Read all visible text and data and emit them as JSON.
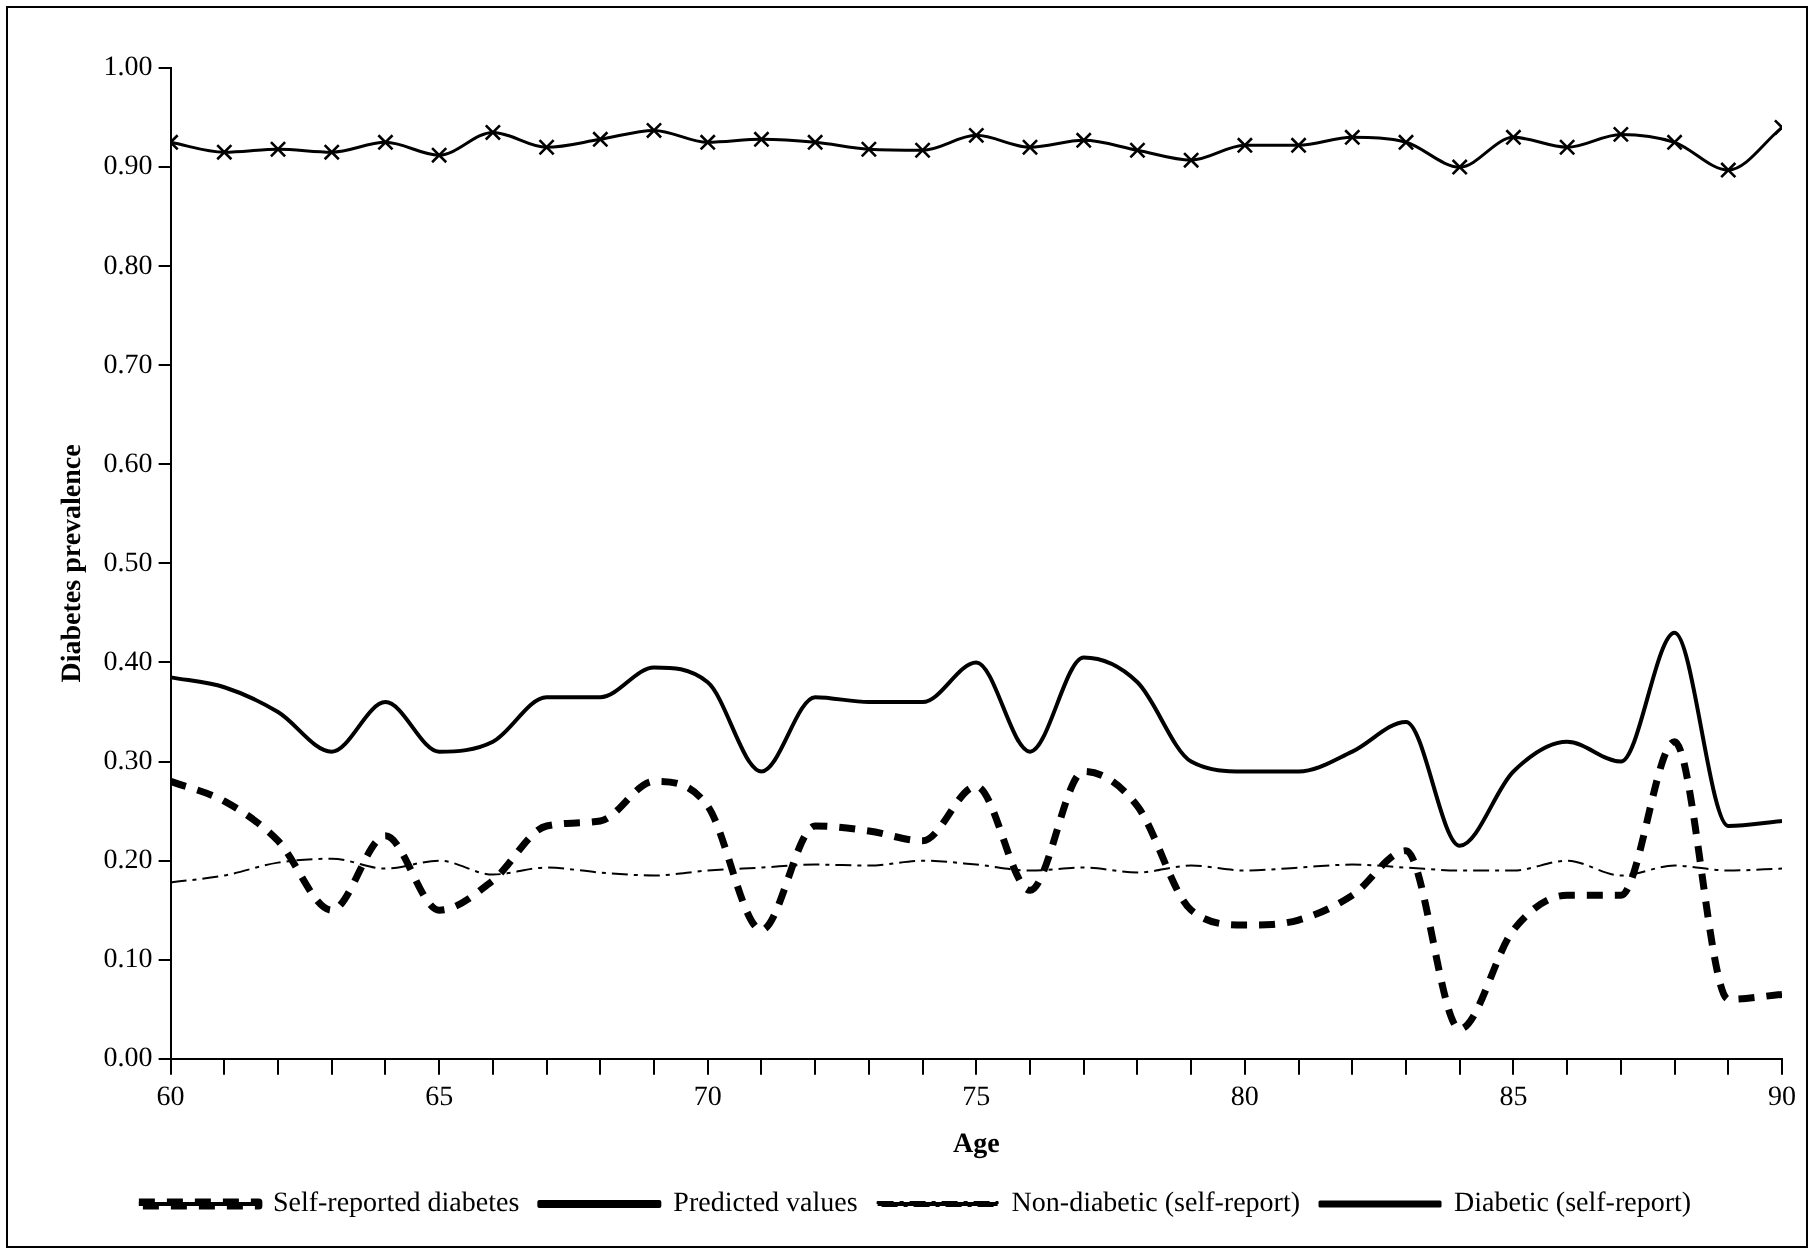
{
  "chart_data": {
    "type": "line",
    "xlabel": "Age",
    "ylabel": "Diabetes prevalence",
    "x": [
      60,
      61,
      62,
      63,
      64,
      65,
      66,
      67,
      68,
      69,
      70,
      71,
      72,
      73,
      74,
      75,
      76,
      77,
      78,
      79,
      80,
      81,
      82,
      83,
      84,
      85,
      86,
      87,
      88,
      89,
      90
    ],
    "series": [
      {
        "name": "Self-reported diabetes",
        "color": "#000000",
        "line_style": "dashed",
        "marker": "none",
        "values": [
          0.28,
          0.26,
          0.22,
          0.15,
          0.225,
          0.15,
          0.18,
          0.235,
          0.24,
          0.28,
          0.255,
          0.13,
          0.235,
          0.23,
          0.22,
          0.275,
          0.17,
          0.29,
          0.255,
          0.15,
          0.135,
          0.14,
          0.165,
          0.21,
          0.03,
          0.13,
          0.165,
          0.165,
          0.32,
          0.06,
          0.065
        ]
      },
      {
        "name": "Predicted values",
        "color": "#000000",
        "line_style": "solid",
        "marker": "none",
        "values": [
          0.385,
          0.375,
          0.35,
          0.31,
          0.36,
          0.31,
          0.32,
          0.365,
          0.365,
          0.395,
          0.38,
          0.29,
          0.365,
          0.36,
          0.36,
          0.4,
          0.31,
          0.405,
          0.38,
          0.3,
          0.29,
          0.29,
          0.31,
          0.34,
          0.215,
          0.29,
          0.32,
          0.3,
          0.43,
          0.235,
          0.24
        ]
      },
      {
        "name": "Non-diabetic (self-report)",
        "color": "#000000",
        "line_style": "dashdot",
        "marker": "none",
        "values": [
          0.178,
          0.185,
          0.198,
          0.202,
          0.192,
          0.2,
          0.186,
          0.193,
          0.188,
          0.185,
          0.19,
          0.193,
          0.196,
          0.195,
          0.2,
          0.196,
          0.19,
          0.193,
          0.188,
          0.195,
          0.19,
          0.193,
          0.196,
          0.193,
          0.19,
          0.19,
          0.2,
          0.185,
          0.195,
          0.19,
          0.192
        ]
      },
      {
        "name": "Diabetic (self-report)",
        "color": "#000000",
        "line_style": "solid",
        "marker": "cross",
        "values": [
          0.925,
          0.915,
          0.918,
          0.915,
          0.925,
          0.912,
          0.935,
          0.92,
          0.928,
          0.937,
          0.925,
          0.928,
          0.925,
          0.918,
          0.917,
          0.932,
          0.92,
          0.927,
          0.917,
          0.907,
          0.922,
          0.922,
          0.93,
          0.925,
          0.9,
          0.93,
          0.92,
          0.933,
          0.925,
          0.897,
          0.94
        ]
      }
    ],
    "xlim": [
      60,
      90
    ],
    "xticks": [
      60,
      {
        "value": 61,
        "label": null
      },
      {
        "value": 62,
        "label": null
      },
      {
        "value": 63,
        "label": null
      },
      {
        "value": 64,
        "label": null
      },
      65,
      {
        "value": 66,
        "label": null
      },
      {
        "value": 67,
        "label": null
      },
      {
        "value": 68,
        "label": null
      },
      {
        "value": 69,
        "label": null
      },
      70,
      {
        "value": 71,
        "label": null
      },
      {
        "value": 72,
        "label": null
      },
      {
        "value": 73,
        "label": null
      },
      {
        "value": 74,
        "label": null
      },
      75,
      {
        "value": 76,
        "label": null
      },
      {
        "value": 77,
        "label": null
      },
      {
        "value": 78,
        "label": null
      },
      {
        "value": 79,
        "label": null
      },
      80,
      {
        "value": 81,
        "label": null
      },
      {
        "value": 82,
        "label": null
      },
      {
        "value": 83,
        "label": null
      },
      {
        "value": 84,
        "label": null
      },
      85,
      {
        "value": 86,
        "label": null
      },
      {
        "value": 87,
        "label": null
      },
      {
        "value": 88,
        "label": null
      },
      {
        "value": 89,
        "label": null
      },
      90
    ],
    "ylim": [
      0,
      1
    ],
    "yticks": [
      {
        "value": 0,
        "label": "0.00"
      },
      {
        "value": 0.1,
        "label": "0.10"
      },
      {
        "value": 0.2,
        "label": "0.20"
      },
      {
        "value": 0.3,
        "label": "0.30"
      },
      {
        "value": 0.4,
        "label": "0.40"
      },
      {
        "value": 0.5,
        "label": "0.50"
      },
      {
        "value": 0.6,
        "label": "0.60"
      },
      {
        "value": 0.7,
        "label": "0.70"
      },
      {
        "value": 0.8,
        "label": "0.80"
      },
      {
        "value": 0.9,
        "label": "0.90"
      },
      {
        "value": 1,
        "label": "1.00"
      }
    ],
    "grid": false,
    "legend": "bottom"
  }
}
